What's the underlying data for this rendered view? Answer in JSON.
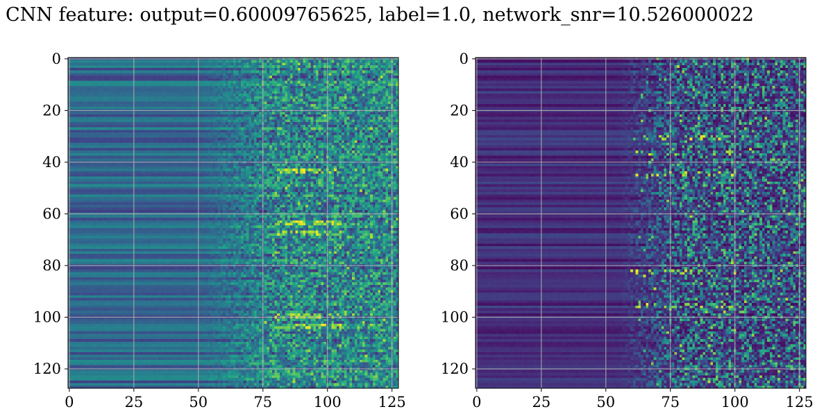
{
  "figure": {
    "title": "CNN feature: output=0.60009765625, label=1.0, network_snr=10.526000022"
  },
  "chart_data": [
    {
      "type": "heatmap",
      "colormap": "viridis",
      "shape": [
        128,
        128
      ],
      "xlim": [
        -0.5,
        127.5
      ],
      "ylim": [
        127.5,
        -0.5
      ],
      "xticks": [
        0,
        25,
        50,
        75,
        100,
        125
      ],
      "yticks": [
        0,
        20,
        40,
        60,
        80,
        100,
        120
      ],
      "grid": true,
      "value_profile": "rows of nearly constant low-to-mid values for x < 50, gradually noisier from x ≈ 50 to 75, high-variance speckle with bright yellow-green spots for x > 75",
      "bright_rows": [
        43,
        63,
        67,
        99,
        103
      ],
      "bright_region_x": [
        80,
        105
      ]
    },
    {
      "type": "heatmap",
      "colormap": "viridis",
      "shape": [
        128,
        128
      ],
      "xlim": [
        -0.5,
        127.5
      ],
      "ylim": [
        127.5,
        -0.5
      ],
      "xticks": [
        0,
        25,
        50,
        75,
        100,
        125
      ],
      "yticks": [
        0,
        20,
        40,
        60,
        80,
        100,
        120
      ],
      "grid": true,
      "value_profile": "dark purple rows for x < 50 with faint horizontal banding, speckled bright pixels increasing for x > 60",
      "bright_rows": [
        30,
        36,
        44,
        82,
        95
      ],
      "bright_region_x": [
        60,
        100
      ]
    }
  ]
}
